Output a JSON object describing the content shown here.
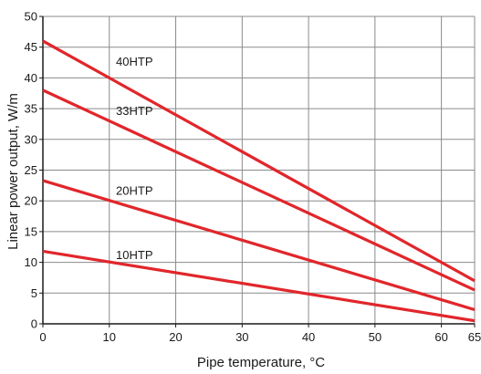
{
  "chart_data": {
    "type": "line",
    "title": "",
    "xlabel": "Pipe temperature, °C",
    "ylabel": "Linear power output, W/m",
    "xlim": [
      0,
      65
    ],
    "ylim": [
      0,
      50
    ],
    "x_ticks": [
      0,
      10,
      20,
      30,
      40,
      50,
      60,
      65
    ],
    "y_ticks": [
      0,
      5,
      10,
      15,
      20,
      25,
      30,
      35,
      40,
      45,
      50
    ],
    "grid": true,
    "line_color": "#e1262b",
    "series": [
      {
        "name": "40HTP",
        "x": [
          0,
          65
        ],
        "y": [
          46,
          7
        ],
        "label_at": [
          11,
          42
        ]
      },
      {
        "name": "33HTP",
        "x": [
          0,
          65
        ],
        "y": [
          38,
          5.5
        ],
        "label_at": [
          11,
          34
        ]
      },
      {
        "name": "20HTP",
        "x": [
          0,
          65
        ],
        "y": [
          23.3,
          2.3
        ],
        "label_at": [
          11,
          21
        ]
      },
      {
        "name": "10HTP",
        "x": [
          0,
          65
        ],
        "y": [
          11.8,
          0.5
        ],
        "label_at": [
          11,
          10.5
        ]
      }
    ]
  }
}
